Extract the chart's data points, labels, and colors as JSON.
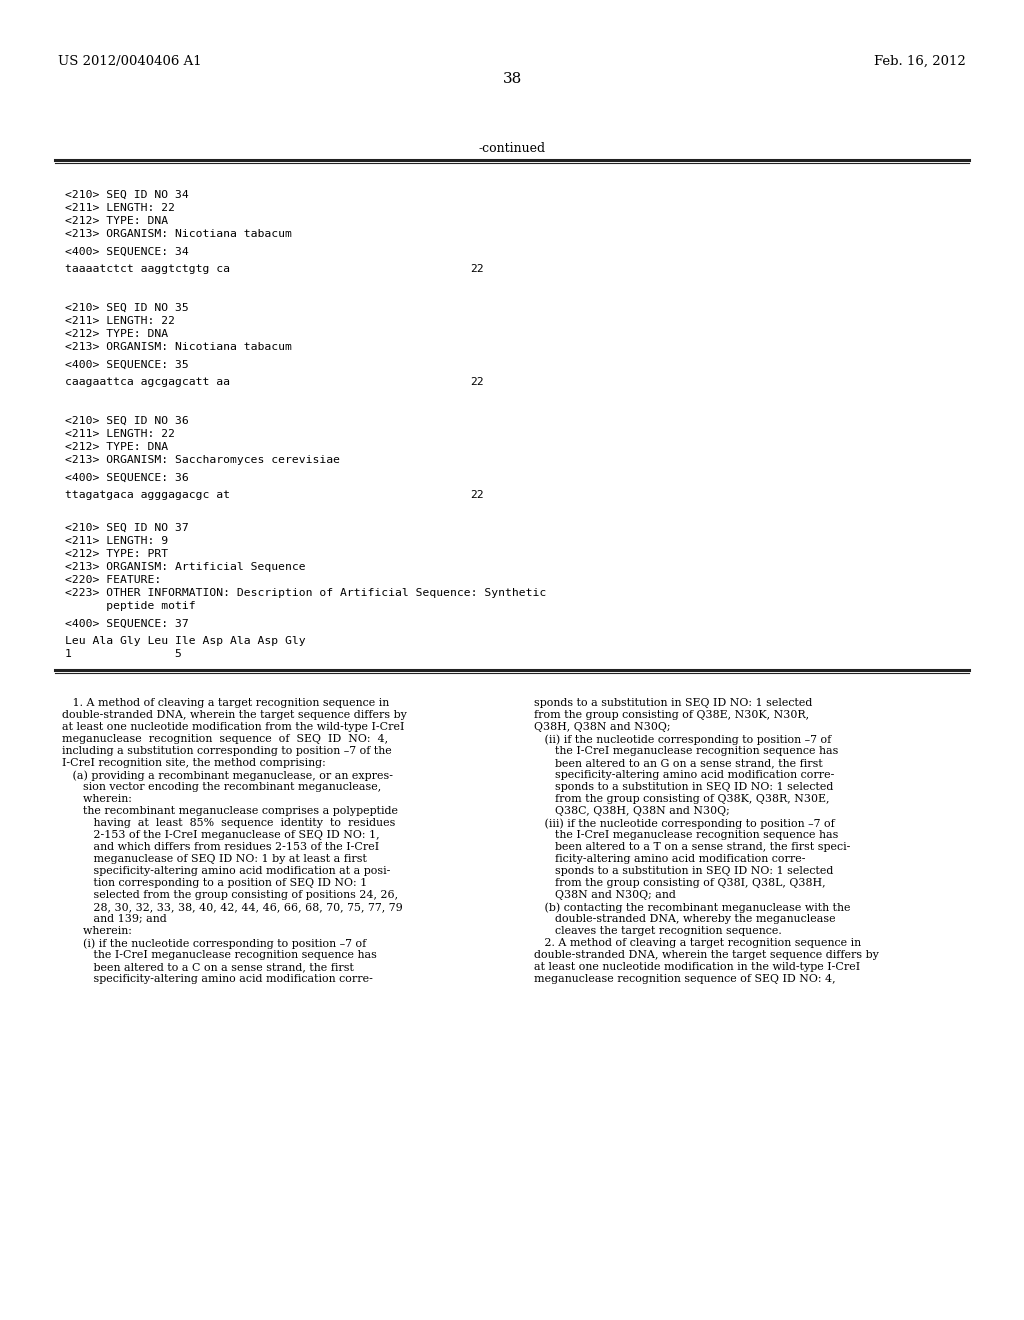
{
  "patent_num": "US 2012/0040406 A1",
  "date": "Feb. 16, 2012",
  "page_num": "38",
  "continued_label": "-continued",
  "background_color": "#ffffff",
  "text_color": "#000000",
  "seq_blocks": [
    {
      "lines": [
        "<210> SEQ ID NO 34",
        "<211> LENGTH: 22",
        "<212> TYPE: DNA",
        "<213> ORGANISM: Nicotiana tabacum"
      ],
      "sequence_label": "<400> SEQUENCE: 34",
      "sequence": "taaaatctct aaggtctgtg ca",
      "seq_num": "22"
    },
    {
      "lines": [
        "<210> SEQ ID NO 35",
        "<211> LENGTH: 22",
        "<212> TYPE: DNA",
        "<213> ORGANISM: Nicotiana tabacum"
      ],
      "sequence_label": "<400> SEQUENCE: 35",
      "sequence": "caagaattca agcgagcatt aa",
      "seq_num": "22"
    },
    {
      "lines": [
        "<210> SEQ ID NO 36",
        "<211> LENGTH: 22",
        "<212> TYPE: DNA",
        "<213> ORGANISM: Saccharomyces cerevisiae"
      ],
      "sequence_label": "<400> SEQUENCE: 36",
      "sequence": "ttagatgaca agggagacgc at",
      "seq_num": "22"
    }
  ],
  "seq37_lines": [
    "<210> SEQ ID NO 37",
    "<211> LENGTH: 9",
    "<212> TYPE: PRT",
    "<213> ORGANISM: Artificial Sequence",
    "<220> FEATURE:",
    "<223> OTHER INFORMATION: Description of Artificial Sequence: Synthetic",
    "      peptide motif"
  ],
  "seq37_label": "<400> SEQUENCE: 37",
  "seq37_sequence": "Leu Ala Gly Leu Ile Asp Ala Asp Gly",
  "seq37_numbering": "1               5",
  "claims_col1": [
    "   1. A method of cleaving a target recognition sequence in",
    "double-stranded DNA, wherein the target sequence differs by",
    "at least one nucleotide modification from the wild-type I-CreI",
    "meganuclease  recognition  sequence  of  SEQ  ID  NO:  4,",
    "including a substitution corresponding to position –7 of the",
    "I-CreI recognition site, the method comprising:",
    "   (a) providing a recombinant meganuclease, or an expres-",
    "      sion vector encoding the recombinant meganuclease,",
    "      wherein:",
    "      the recombinant meganuclease comprises a polypeptide",
    "         having  at  least  85%  sequence  identity  to  residues",
    "         2-153 of the I-CreI meganuclease of SEQ ID NO: 1,",
    "         and which differs from residues 2-153 of the I-CreI",
    "         meganuclease of SEQ ID NO: 1 by at least a first",
    "         specificity-altering amino acid modification at a posi-",
    "         tion corresponding to a position of SEQ ID NO: 1",
    "         selected from the group consisting of positions 24, 26,",
    "         28, 30, 32, 33, 38, 40, 42, 44, 46, 66, 68, 70, 75, 77, 79",
    "         and 139; and",
    "      wherein:",
    "      (i) if the nucleotide corresponding to position –7 of",
    "         the I-CreI meganuclease recognition sequence has",
    "         been altered to a C on a sense strand, the first",
    "         specificity-altering amino acid modification corre-"
  ],
  "claims_col2": [
    "sponds to a substitution in SEQ ID NO: 1 selected",
    "from the group consisting of Q38E, N30K, N30R,",
    "Q38H, Q38N and N30Q;",
    "   (ii) if the nucleotide corresponding to position –7 of",
    "      the I-CreI meganuclease recognition sequence has",
    "      been altered to an G on a sense strand, the first",
    "      specificity-altering amino acid modification corre-",
    "      sponds to a substitution in SEQ ID NO: 1 selected",
    "      from the group consisting of Q38K, Q38R, N30E,",
    "      Q38C, Q38H, Q38N and N30Q;",
    "   (iii) if the nucleotide corresponding to position –7 of",
    "      the I-CreI meganuclease recognition sequence has",
    "      been altered to a T on a sense strand, the first speci-",
    "      ficity-altering amino acid modification corre-",
    "      sponds to a substitution in SEQ ID NO: 1 selected",
    "      from the group consisting of Q38I, Q38L, Q38H,",
    "      Q38N and N30Q; and",
    "   (b) contacting the recombinant meganuclease with the",
    "      double-stranded DNA, whereby the meganuclease",
    "      cleaves the target recognition sequence.",
    "   2. A method of cleaving a target recognition sequence in",
    "double-stranded DNA, wherein the target sequence differs by",
    "at least one nucleotide modification in the wild-type I-CreI",
    "meganuclease recognition sequence of SEQ ID NO: 4,"
  ]
}
